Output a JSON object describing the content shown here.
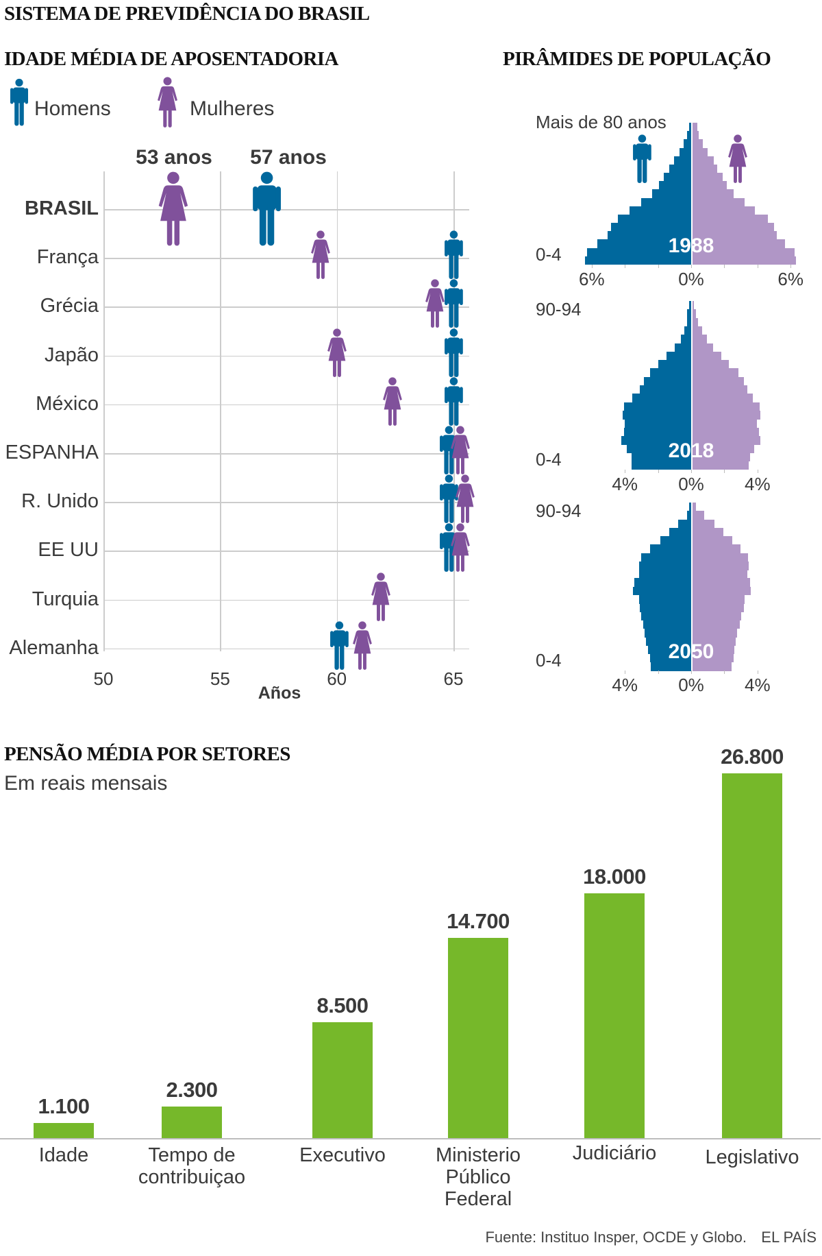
{
  "title": "SISTEMA DE PREVIDÊNCIA DO BRASIL",
  "colors": {
    "men": "#00689d",
    "women": "#80519b",
    "women_light": "#b096c6",
    "bars": "#76b82a",
    "grid": "#cccccc",
    "text": "#3a3a3a"
  },
  "chart_data": [
    {
      "type": "scatter",
      "title": "IDADE MÉDIA DE APOSENTADORIA",
      "legend": {
        "men": "Homens",
        "women": "Mulheres",
        "placement": "top-left"
      },
      "xlabel": "Años",
      "xlim": [
        50,
        65
      ],
      "xticks": [
        "50",
        "55",
        "60",
        "65"
      ],
      "callouts": {
        "women": "53 anos",
        "men": "57 anos"
      },
      "rows": [
        {
          "label": "BRASIL",
          "women": 53,
          "men": 57,
          "highlight": true
        },
        {
          "label": "França",
          "women": 59.3,
          "men": 65
        },
        {
          "label": "Grécia",
          "women": 64.2,
          "men": 65
        },
        {
          "label": "Japão",
          "women": 60,
          "men": 65
        },
        {
          "label": "México",
          "women": 62.4,
          "men": 65
        },
        {
          "label": "ESPANHA",
          "women": 65.3,
          "men": 64.8
        },
        {
          "label": "R. Unido",
          "women": 65.5,
          "men": 64.8
        },
        {
          "label": "EE UU",
          "women": 65.3,
          "men": 64.8
        },
        {
          "label": "Turquia",
          "women": 61.9,
          "men": null
        },
        {
          "label": "Alemanha",
          "women": 61.1,
          "men": 60.1
        }
      ]
    },
    {
      "type": "bar",
      "subtype": "population-pyramids",
      "title": "PIRÂMIDES DE POPULAÇÃO",
      "pyramids": [
        {
          "year": "1988",
          "top_label": "Mais de 80 anos",
          "bottom_label": "0-4",
          "ticks": [
            "6%",
            "0%",
            "6%"
          ],
          "tick_max": 6,
          "male": [
            6.39,
            6.29,
            5.66,
            5.06,
            4.83,
            4.44,
            3.7,
            3.03,
            2.36,
            1.94,
            1.67,
            1.31,
            1.02,
            0.72,
            0.47,
            0.23,
            0.14
          ],
          "female": [
            6.26,
            6.18,
            5.59,
            5.1,
            4.92,
            4.55,
            3.78,
            3.16,
            2.51,
            2.1,
            1.85,
            1.49,
            1.3,
            0.92,
            0.63,
            0.41,
            0.3
          ]
        },
        {
          "year": "2018",
          "top_label": "90-94",
          "bottom_label": "0-4",
          "ticks": [
            "4%",
            "0%",
            "4%"
          ],
          "tick_max": 4,
          "male": [
            3.59,
            3.59,
            3.89,
            4.22,
            4.07,
            4.0,
            4.14,
            4.04,
            3.55,
            3.11,
            2.86,
            2.5,
            1.97,
            1.47,
            0.99,
            0.63,
            0.4,
            0.23,
            0.23,
            0.11
          ],
          "female": [
            3.42,
            3.51,
            3.74,
            4.12,
            4.01,
            3.92,
            4.12,
            4.08,
            3.66,
            3.34,
            3.11,
            2.8,
            2.23,
            1.76,
            1.28,
            0.89,
            0.6,
            0.36,
            0.22,
            0.11
          ]
        },
        {
          "year": "2050",
          "top_label": "90-94",
          "bottom_label": "0-4",
          "ticks": [
            "4%",
            "0%",
            "4%"
          ],
          "tick_max": 4,
          "male": [
            2.43,
            2.5,
            2.61,
            2.72,
            2.8,
            2.91,
            3.0,
            3.09,
            3.13,
            3.51,
            3.41,
            3.16,
            3.16,
            3.02,
            2.47,
            1.88,
            1.33,
            0.78,
            0.23,
            0.12
          ],
          "female": [
            2.36,
            2.5,
            2.54,
            2.63,
            2.72,
            2.87,
            2.96,
            3.12,
            3.15,
            3.55,
            3.48,
            3.33,
            3.41,
            3.37,
            2.93,
            2.41,
            1.88,
            1.36,
            0.73,
            0.23
          ]
        }
      ]
    },
    {
      "type": "bar",
      "title": "PENSÃO MÉDIA POR SETORES",
      "subtitle": "Em reais mensais",
      "ylabel": "Em reais mensais",
      "ylim": [
        0,
        26800
      ],
      "categories": [
        [
          "Idade"
        ],
        [
          "Tempo de",
          "contribuiçao"
        ],
        [
          "Executivo"
        ],
        [
          "Ministerio",
          "Público",
          "Federal"
        ],
        [
          "Judiciário"
        ],
        [
          "Legislativo"
        ]
      ],
      "values": [
        1100,
        2300,
        8500,
        14700,
        18000,
        26800
      ],
      "value_labels": [
        "1.100",
        "2.300",
        "8.500",
        "14.700",
        "18.000",
        "26.800"
      ]
    }
  ],
  "footer": {
    "source": "Fuente: Instituo Insper, OCDE y Globo.",
    "brand": "EL PAÍS"
  }
}
